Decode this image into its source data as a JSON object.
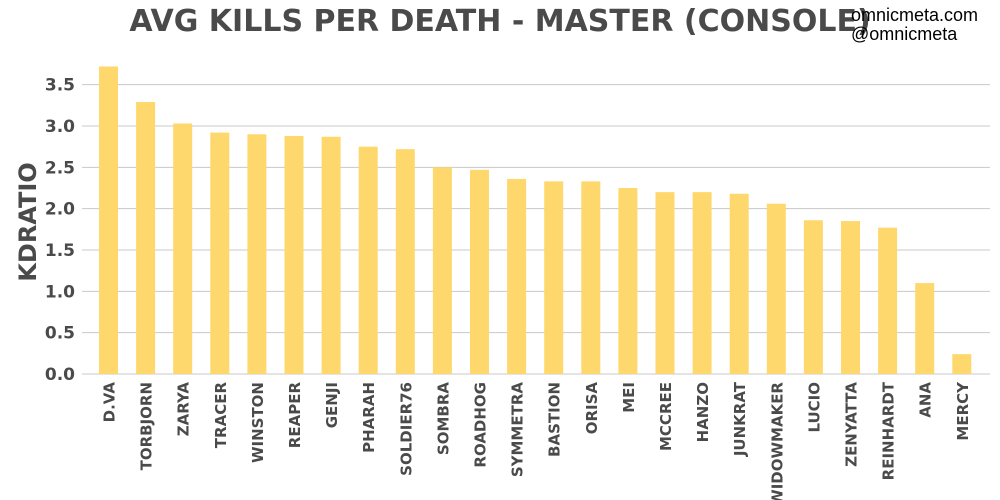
{
  "branding": {
    "site": "omnicmeta.com",
    "handle": "@omnicmeta"
  },
  "colors": {
    "bar": "#FED86C",
    "text": "#4a4a4a",
    "grid": "#c8c8c8"
  },
  "chart_data": {
    "type": "bar",
    "title": "AVG KILLS PER DEATH - MASTER (CONSOLE)",
    "xlabel": "",
    "ylabel": "KDRATIO",
    "ylim": [
      0,
      3.75
    ],
    "yticks": [
      "0.0",
      "0.5",
      "1.0",
      "1.5",
      "2.0",
      "2.5",
      "3.0",
      "3.5"
    ],
    "grid": true,
    "categories": [
      "D.VA",
      "TORBJORN",
      "ZARYA",
      "TRACER",
      "WINSTON",
      "REAPER",
      "GENJI",
      "PHARAH",
      "SOLDIER76",
      "SOMBRA",
      "ROADHOG",
      "SYMMETRA",
      "BASTION",
      "ORISA",
      "MEI",
      "MCCREE",
      "HANZO",
      "JUNKRAT",
      "WIDOWMAKER",
      "LUCIO",
      "ZENYATTA",
      "REINHARDT",
      "ANA",
      "MERCY"
    ],
    "values": [
      3.72,
      3.29,
      3.03,
      2.92,
      2.9,
      2.88,
      2.87,
      2.75,
      2.72,
      2.5,
      2.47,
      2.36,
      2.33,
      2.33,
      2.25,
      2.2,
      2.2,
      2.18,
      2.06,
      1.86,
      1.85,
      1.77,
      1.1,
      0.24
    ]
  }
}
